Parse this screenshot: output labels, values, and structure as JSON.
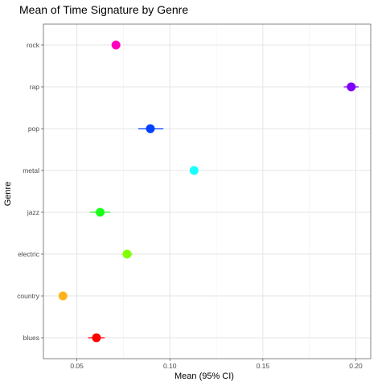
{
  "chart_data": {
    "type": "scatter",
    "title": "Mean of Time Signature by Genre",
    "xlabel": "Mean (95% CI)",
    "ylabel": "Genre",
    "xlim": [
      0.032,
      0.208
    ],
    "x_ticks": [
      0.05,
      0.1,
      0.15,
      0.2
    ],
    "x_tick_labels": [
      "0.05",
      "0.10",
      "0.15",
      "0.20"
    ],
    "categories": [
      "blues",
      "country",
      "electric",
      "jazz",
      "metal",
      "pop",
      "rap",
      "rock"
    ],
    "grid": true,
    "points": [
      {
        "genre": "blues",
        "mean": 0.0605,
        "lower": 0.056,
        "upper": 0.065,
        "color": "#ff0000"
      },
      {
        "genre": "country",
        "mean": 0.0425,
        "lower": 0.0425,
        "upper": 0.0425,
        "color": "#ffb31a"
      },
      {
        "genre": "electric",
        "mean": 0.077,
        "lower": 0.074,
        "upper": 0.08,
        "color": "#80ff00"
      },
      {
        "genre": "jazz",
        "mean": 0.0625,
        "lower": 0.057,
        "upper": 0.068,
        "color": "#1aff1a"
      },
      {
        "genre": "metal",
        "mean": 0.113,
        "lower": 0.113,
        "upper": 0.113,
        "color": "#1affff"
      },
      {
        "genre": "pop",
        "mean": 0.0895,
        "lower": 0.083,
        "upper": 0.0965,
        "color": "#0040ff"
      },
      {
        "genre": "rap",
        "mean": 0.1975,
        "lower": 0.1935,
        "upper": 0.2015,
        "color": "#8000ff"
      },
      {
        "genre": "rock",
        "mean": 0.071,
        "lower": 0.071,
        "upper": 0.071,
        "color": "#ff00bf"
      }
    ]
  }
}
